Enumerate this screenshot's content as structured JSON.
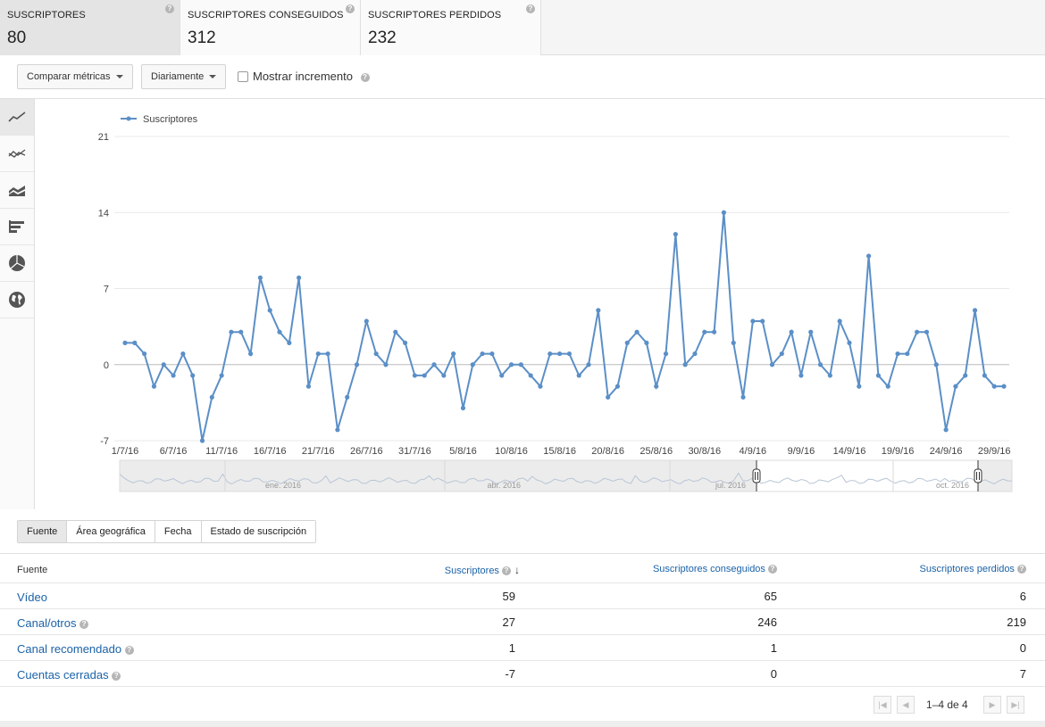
{
  "cards": [
    {
      "title": "SUSCRIPTORES",
      "value": "80",
      "active": true
    },
    {
      "title": "SUSCRIPTORES CONSEGUIDOS",
      "value": "312",
      "active": false
    },
    {
      "title": "SUSCRIPTORES PERDIDOS",
      "value": "232",
      "active": false
    }
  ],
  "toolbar": {
    "compare_label": "Comparar métricas",
    "period_label": "Diariamente",
    "increment_label": "Mostrar incremento",
    "increment_checked": false
  },
  "sidebar_icons": [
    "line-chart-icon",
    "multi-line-chart-icon",
    "stacked-area-chart-icon",
    "bar-chart-icon",
    "pie-chart-icon",
    "globe-map-icon"
  ],
  "chart_data": {
    "type": "line",
    "series": [
      {
        "name": "Suscriptores",
        "color": "#5b8fc7",
        "values": [
          2,
          2,
          1,
          -2,
          0,
          -1,
          1,
          -1,
          -7,
          -3,
          -1,
          3,
          3,
          1,
          8,
          5,
          3,
          2,
          8,
          -2,
          1,
          1,
          -6,
          -3,
          0,
          4,
          1,
          0,
          3,
          2,
          -1,
          -1,
          0,
          -1,
          1,
          -4,
          0,
          1,
          1,
          -1,
          0,
          0,
          -1,
          -2,
          1,
          1,
          1,
          -1,
          0,
          5,
          -3,
          -2,
          2,
          3,
          2,
          -2,
          1,
          12,
          0,
          1,
          3,
          3,
          14,
          2,
          -3,
          4,
          4,
          0,
          1,
          3,
          -1,
          3,
          0,
          -1,
          4,
          2,
          -2,
          10,
          -1,
          -2,
          1,
          1,
          3,
          3,
          0,
          -6,
          -2,
          -1,
          5,
          -1,
          -2,
          -2
        ]
      }
    ],
    "x_tick_labels": [
      "1/7/16",
      "6/7/16",
      "11/7/16",
      "16/7/16",
      "21/7/16",
      "26/7/16",
      "31/7/16",
      "5/8/16",
      "10/8/16",
      "15/8/16",
      "20/8/16",
      "25/8/16",
      "30/8/16",
      "4/9/16",
      "9/9/16",
      "14/9/16",
      "19/9/16",
      "24/9/16",
      "29/9/16"
    ],
    "y_ticks": [
      21,
      14,
      7,
      0,
      -7
    ],
    "ylim": [
      -7,
      21
    ],
    "grid": true,
    "legend_position": "top-left",
    "overview_labels": [
      "ene. 2016",
      "abr. 2016",
      "jul. 2016",
      "oct. 2016"
    ]
  },
  "tabs": [
    {
      "label": "Fuente",
      "active": true
    },
    {
      "label": "Área geográfica",
      "active": false
    },
    {
      "label": "Fecha",
      "active": false
    },
    {
      "label": "Estado de suscripción",
      "active": false
    }
  ],
  "table": {
    "headers": [
      "Fuente",
      "Suscriptores",
      "Suscriptores conseguidos",
      "Suscriptores perdidos"
    ],
    "rows": [
      {
        "source": "Vídeo",
        "help": false,
        "subs": "59",
        "gained": "65",
        "lost": "6"
      },
      {
        "source": "Canal/otros",
        "help": true,
        "subs": "27",
        "gained": "246",
        "lost": "219"
      },
      {
        "source": "Canal recomendado",
        "help": true,
        "subs": "1",
        "gained": "1",
        "lost": "0"
      },
      {
        "source": "Cuentas cerradas",
        "help": true,
        "subs": "-7",
        "gained": "0",
        "lost": "7"
      }
    ]
  },
  "pager": {
    "text": "1–4 de 4"
  }
}
